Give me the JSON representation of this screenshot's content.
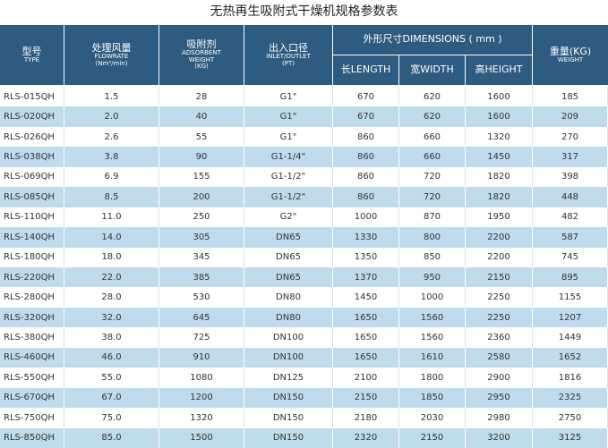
{
  "title": "无热再生吸附式干燥机规格参数表",
  "header": {
    "type": [
      "型号",
      "TYPE"
    ],
    "flowrate": [
      "处理风量",
      "FLOWRATE",
      "(Nm³/min)"
    ],
    "adsorbent": [
      "吸附剂",
      "ADSORBENT",
      "WEIGHT",
      "(KG)"
    ],
    "inlet": [
      "出入口径",
      "INLET/OUTLET",
      "(PT)"
    ],
    "dimensions": "外形尺寸DIMENSIONS ( mm )",
    "length": "长LENGTH",
    "width": "宽WIDTH",
    "height": "高HEIGHT",
    "weight": [
      "重量(KG)",
      "WEIGHT"
    ]
  },
  "table": {
    "rows": [
      [
        "RLS-015QH",
        "1.5",
        "28",
        "G1\"",
        "670",
        "620",
        "1600",
        "185"
      ],
      [
        "RLS-020QH",
        "2.0",
        "40",
        "G1\"",
        "670",
        "620",
        "1600",
        "209"
      ],
      [
        "RLS-026QH",
        "2.6",
        "55",
        "G1\"",
        "860",
        "660",
        "1320",
        "270"
      ],
      [
        "RLS-038QH",
        "3.8",
        "90",
        "G1-1/4\"",
        "860",
        "660",
        "1450",
        "317"
      ],
      [
        "RLS-069QH",
        "6.9",
        "155",
        "G1-1/2\"",
        "860",
        "720",
        "1820",
        "398"
      ],
      [
        "RLS-085QH",
        "8.5",
        "200",
        "G1-1/2\"",
        "860",
        "720",
        "1820",
        "448"
      ],
      [
        "RLS-110QH",
        "11.0",
        "250",
        "G2\"",
        "1000",
        "870",
        "1950",
        "482"
      ],
      [
        "RLS-140QH",
        "14.0",
        "305",
        "DN65",
        "1330",
        "800",
        "2200",
        "587"
      ],
      [
        "RLS-180QH",
        "18.0",
        "345",
        "DN65",
        "1350",
        "850",
        "2200",
        "745"
      ],
      [
        "RLS-220QH",
        "22.0",
        "385",
        "DN65",
        "1370",
        "950",
        "2150",
        "895"
      ],
      [
        "RLS-280QH",
        "28.0",
        "530",
        "DN80",
        "1450",
        "1000",
        "2250",
        "1155"
      ],
      [
        "RLS-320QH",
        "32.0",
        "645",
        "DN80",
        "1650",
        "1560",
        "2250",
        "1207"
      ],
      [
        "RLS-380QH",
        "38.0",
        "725",
        "DN100",
        "1650",
        "1560",
        "2360",
        "1449"
      ],
      [
        "RLS-460QH",
        "46.0",
        "910",
        "DN100",
        "1650",
        "1610",
        "2580",
        "1652"
      ],
      [
        "RLS-550QH",
        "55.0",
        "1080",
        "DN125",
        "2100",
        "1800",
        "2900",
        "1816"
      ],
      [
        "RLS-670QH",
        "67.0",
        "1200",
        "DN150",
        "2150",
        "1850",
        "2950",
        "2325"
      ],
      [
        "RLS-750QH",
        "75.0",
        "1320",
        "DN150",
        "2180",
        "2030",
        "2980",
        "2750"
      ],
      [
        "RLS-850QH",
        "85.0",
        "1500",
        "DN150",
        "2320",
        "2150",
        "3200",
        "3125"
      ]
    ]
  }
}
